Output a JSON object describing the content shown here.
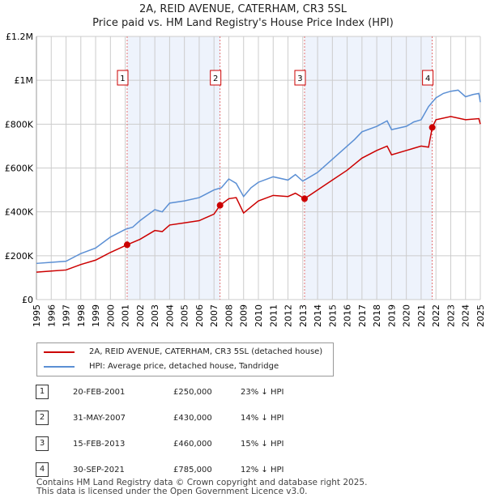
{
  "title": "2A, REID AVENUE, CATERHAM, CR3 5SL",
  "subtitle": "Price paid vs. HM Land Registry's House Price Index (HPI)",
  "chart_data": {
    "type": "line",
    "title": "2A, REID AVENUE, CATERHAM, CR3 5SL",
    "xlim": [
      1995,
      2025
    ],
    "ylim": [
      0,
      1200000
    ],
    "yticks": [
      0,
      200000,
      400000,
      600000,
      800000,
      1000000,
      1200000
    ],
    "ytick_labels": [
      "£0",
      "£200K",
      "£400K",
      "£600K",
      "£800K",
      "£1M",
      "£1.2M"
    ],
    "xticks": [
      "1995",
      "1996",
      "1997",
      "1998",
      "1999",
      "2000",
      "2001",
      "2002",
      "2003",
      "2004",
      "2005",
      "2006",
      "2007",
      "2008",
      "2009",
      "2010",
      "2011",
      "2012",
      "2013",
      "2014",
      "2015",
      "2016",
      "2017",
      "2018",
      "2019",
      "2020",
      "2021",
      "2022",
      "2023",
      "2024",
      "2025"
    ],
    "grid": true,
    "shaded_ranges": [
      [
        2001.13,
        2007.41
      ],
      [
        2013.12,
        2021.75
      ]
    ],
    "colors": {
      "price": "#cc0000",
      "hpi": "#5b8fd4",
      "shade": "#eef3fc"
    },
    "series": [
      {
        "name": "2A, REID AVENUE, CATERHAM, CR3 5SL (detached house)",
        "x": [
          1995,
          1996,
          1997,
          1998,
          1999,
          2000,
          2001.13,
          2002,
          2003,
          2003.5,
          2004,
          2005,
          2006,
          2007,
          2007.41,
          2008,
          2008.5,
          2009,
          2010,
          2011,
          2012,
          2012.5,
          2013.12,
          2014,
          2015,
          2016,
          2017,
          2018,
          2018.7,
          2019,
          2020,
          2021,
          2021.5,
          2021.75,
          2022,
          2023,
          2024,
          2024.9,
          2025
        ],
        "y": [
          125000,
          130000,
          135000,
          160000,
          180000,
          215000,
          250000,
          275000,
          315000,
          310000,
          340000,
          350000,
          360000,
          390000,
          430000,
          460000,
          465000,
          395000,
          450000,
          475000,
          470000,
          485000,
          460000,
          500000,
          545000,
          590000,
          645000,
          680000,
          700000,
          660000,
          680000,
          700000,
          695000,
          785000,
          820000,
          835000,
          820000,
          825000,
          800000
        ]
      },
      {
        "name": "HPI: Average price, detached house, Tandridge",
        "x": [
          1995,
          1996,
          1997,
          1998,
          1999,
          2000,
          2001,
          2001.5,
          2002,
          2003,
          2003.5,
          2004,
          2005,
          2006,
          2007,
          2007.5,
          2008,
          2008.5,
          2009,
          2009.5,
          2010,
          2011,
          2012,
          2012.5,
          2013,
          2014,
          2015,
          2016,
          2016.5,
          2017,
          2018,
          2018.7,
          2019,
          2020,
          2020.5,
          2021,
          2021.5,
          2022,
          2022.5,
          2023,
          2023.5,
          2024,
          2024.5,
          2024.9,
          2025
        ],
        "y": [
          165000,
          170000,
          175000,
          210000,
          235000,
          285000,
          320000,
          330000,
          360000,
          410000,
          400000,
          440000,
          450000,
          465000,
          500000,
          510000,
          550000,
          530000,
          470000,
          510000,
          535000,
          560000,
          545000,
          570000,
          540000,
          580000,
          640000,
          700000,
          730000,
          765000,
          790000,
          815000,
          775000,
          790000,
          810000,
          820000,
          880000,
          920000,
          940000,
          950000,
          955000,
          925000,
          935000,
          940000,
          900000
        ]
      }
    ],
    "sales": [
      {
        "label": "1",
        "x": 2001.13,
        "y": 250000
      },
      {
        "label": "2",
        "x": 2007.41,
        "y": 430000
      },
      {
        "label": "3",
        "x": 2013.12,
        "y": 460000
      },
      {
        "label": "4",
        "x": 2021.75,
        "y": 785000
      }
    ]
  },
  "legend": {
    "price": "2A, REID AVENUE, CATERHAM, CR3 5SL (detached house)",
    "hpi": "HPI: Average price, detached house, Tandridge"
  },
  "table": [
    {
      "num": "1",
      "date": "20-FEB-2001",
      "price": "£250,000",
      "hpi": "23% ↓ HPI"
    },
    {
      "num": "2",
      "date": "31-MAY-2007",
      "price": "£430,000",
      "hpi": "14% ↓ HPI"
    },
    {
      "num": "3",
      "date": "15-FEB-2013",
      "price": "£460,000",
      "hpi": "15% ↓ HPI"
    },
    {
      "num": "4",
      "date": "30-SEP-2021",
      "price": "£785,000",
      "hpi": "12% ↓ HPI"
    }
  ],
  "footer": {
    "line1": "Contains HM Land Registry data © Crown copyright and database right 2025.",
    "line2": "This data is licensed under the Open Government Licence v3.0."
  }
}
